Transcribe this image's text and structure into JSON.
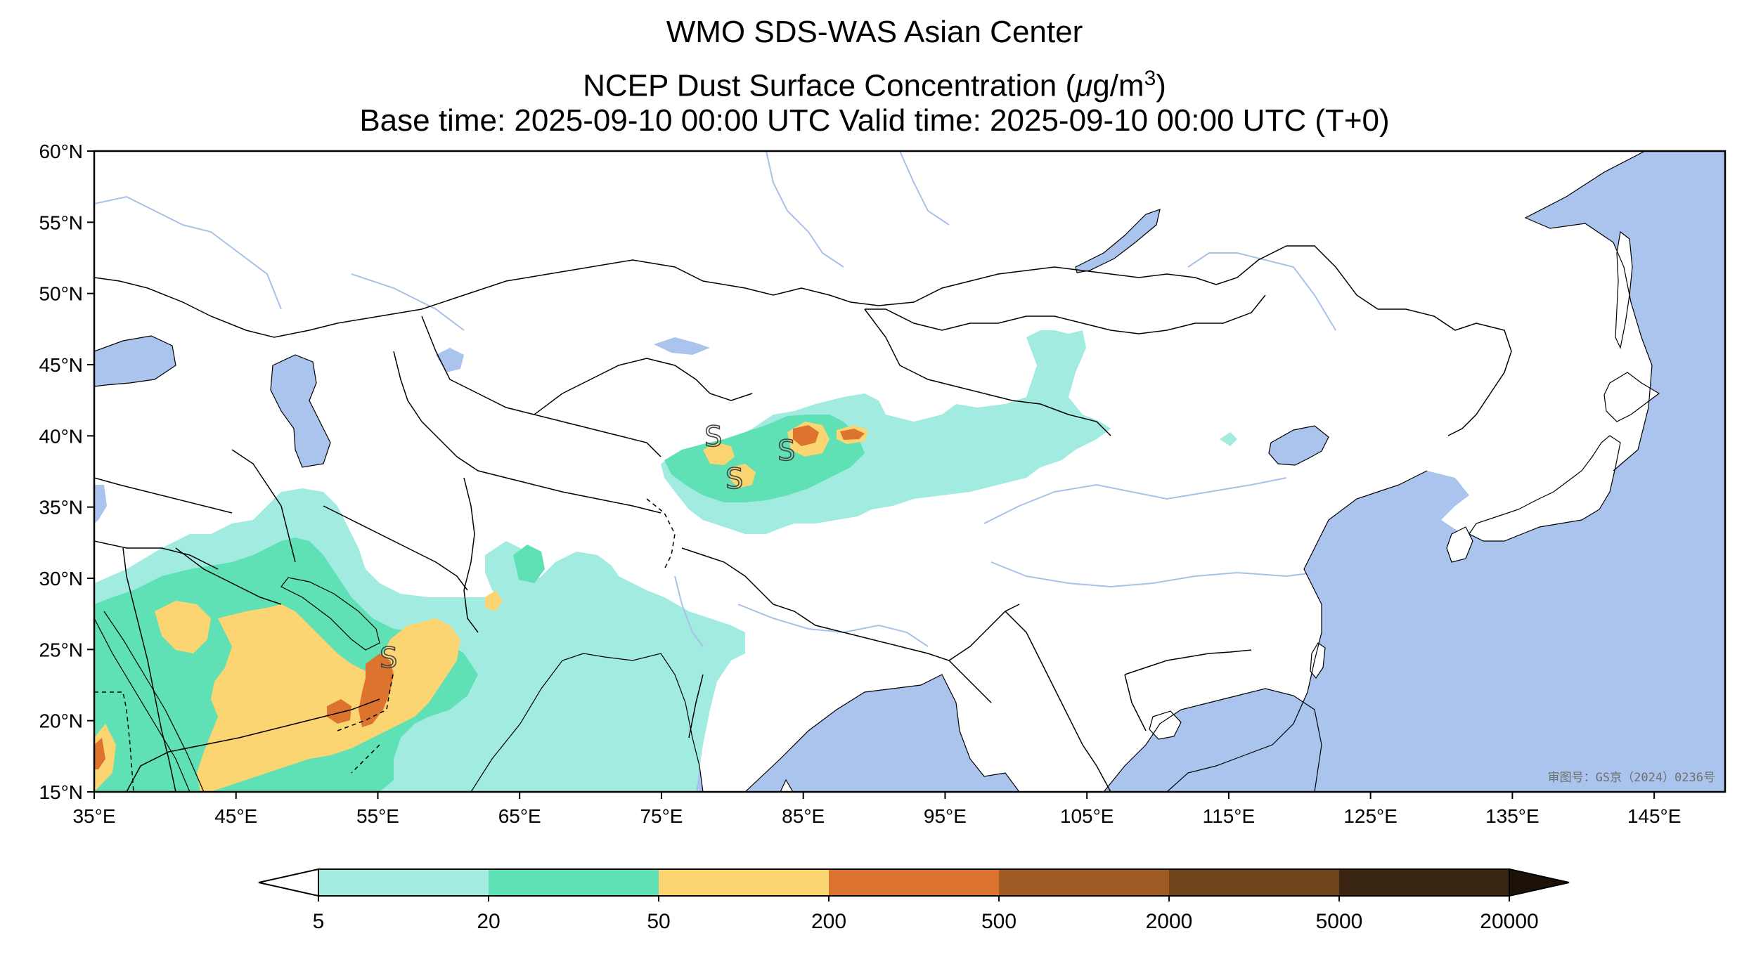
{
  "title": {
    "line1": "WMO SDS-WAS Asian Center",
    "line2_prefix": "NCEP Dust Surface Concentration (",
    "line2_mu": "μ",
    "line2_unit": "g/m",
    "line2_exp": "3",
    "line2_suffix": ")",
    "line3": "Base time: 2025-09-10 00:00 UTC Valid time: 2025-09-10 00:00 UTC (T+0)"
  },
  "map": {
    "extent": {
      "lon": [
        35,
        150
      ],
      "lat": [
        15,
        60
      ]
    },
    "lon_ticks": [
      {
        "value": 35,
        "label": "35°E"
      },
      {
        "value": 45,
        "label": "45°E"
      },
      {
        "value": 55,
        "label": "55°E"
      },
      {
        "value": 65,
        "label": "65°E"
      },
      {
        "value": 75,
        "label": "75°E"
      },
      {
        "value": 85,
        "label": "85°E"
      },
      {
        "value": 95,
        "label": "95°E"
      },
      {
        "value": 105,
        "label": "105°E"
      },
      {
        "value": 115,
        "label": "115°E"
      },
      {
        "value": 125,
        "label": "125°E"
      },
      {
        "value": 135,
        "label": "135°E"
      },
      {
        "value": 145,
        "label": "145°E"
      }
    ],
    "lat_ticks": [
      {
        "value": 15,
        "label": "15°N"
      },
      {
        "value": 20,
        "label": "20°N"
      },
      {
        "value": 25,
        "label": "25°N"
      },
      {
        "value": 30,
        "label": "30°N"
      },
      {
        "value": 35,
        "label": "35°N"
      },
      {
        "value": 40,
        "label": "40°N"
      },
      {
        "value": 45,
        "label": "45°N"
      },
      {
        "value": 50,
        "label": "50°N"
      },
      {
        "value": 55,
        "label": "55°N"
      },
      {
        "value": 60,
        "label": "60°N"
      }
    ],
    "watermark": "审图号：GS京（2024）0236号",
    "storm_symbol": "S",
    "colors": {
      "ocean": "#aac4ee",
      "land": "#ffffff",
      "river": "#a6c2e8",
      "border": "#000000"
    }
  },
  "colorbar": {
    "levels": [
      "5",
      "20",
      "50",
      "200",
      "500",
      "2000",
      "5000",
      "20000"
    ],
    "colors": [
      "#a2ebe0",
      "#5fe0b5",
      "#fbd572",
      "#dc742f",
      "#9e5c24",
      "#6f441c",
      "#3a2412"
    ],
    "under_color": "#ffffff",
    "over_color": "#1d1208"
  }
}
